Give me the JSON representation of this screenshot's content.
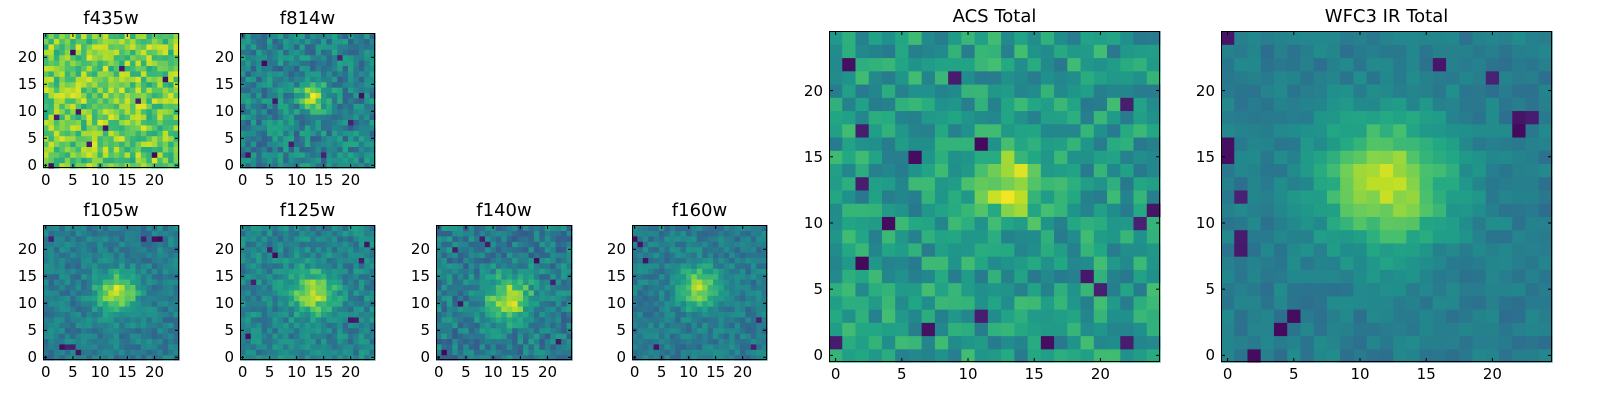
{
  "chart_data": [
    {
      "type": "heatmap",
      "title": "f435w",
      "grid_size": [
        25,
        25
      ],
      "xticks": [
        "0",
        "5",
        "10",
        "15",
        "20"
      ],
      "yticks": [
        "0",
        "5",
        "10",
        "15",
        "20"
      ],
      "source": {
        "cx": 12,
        "cy": 12,
        "sigma": 2.0,
        "amp": 0.05
      },
      "background": 0.78,
      "noise": 0.18,
      "dark_pixels": [
        [
          2,
          9
        ],
        [
          6,
          10
        ],
        [
          8,
          4
        ],
        [
          11,
          7
        ],
        [
          14,
          18
        ],
        [
          20,
          2
        ],
        [
          22,
          16
        ],
        [
          5,
          21
        ],
        [
          1,
          0
        ],
        [
          17,
          12
        ]
      ],
      "colormap": "viridis"
    },
    {
      "type": "heatmap",
      "title": "f814w",
      "grid_size": [
        25,
        25
      ],
      "xticks": [
        "0",
        "5",
        "10",
        "15",
        "20"
      ],
      "yticks": [
        "0",
        "5",
        "10",
        "15",
        "20"
      ],
      "source": {
        "cx": 13,
        "cy": 13,
        "sigma": 1.8,
        "amp": 0.45
      },
      "background": 0.45,
      "noise": 0.16,
      "dark_pixels": [
        [
          4,
          19
        ],
        [
          9,
          4
        ],
        [
          18,
          20
        ],
        [
          20,
          8
        ],
        [
          1,
          2
        ],
        [
          22,
          13
        ],
        [
          6,
          12
        ],
        [
          15,
          2
        ]
      ],
      "colormap": "viridis"
    },
    {
      "type": "heatmap",
      "title": "f105w",
      "grid_size": [
        25,
        25
      ],
      "xticks": [
        "0",
        "5",
        "10",
        "15",
        "20"
      ],
      "yticks": [
        "0",
        "5",
        "10",
        "15",
        "20"
      ],
      "source": {
        "cx": 13,
        "cy": 12,
        "sigma": 2.6,
        "amp": 0.5
      },
      "background": 0.42,
      "noise": 0.1,
      "dark_pixels": [
        [
          3,
          2
        ],
        [
          4,
          2
        ],
        [
          5,
          2
        ],
        [
          6,
          1
        ],
        [
          20,
          22
        ],
        [
          21,
          22
        ],
        [
          1,
          22
        ],
        [
          18,
          22
        ]
      ],
      "colormap": "viridis"
    },
    {
      "type": "heatmap",
      "title": "f125w",
      "grid_size": [
        25,
        25
      ],
      "xticks": [
        "0",
        "5",
        "10",
        "15",
        "20"
      ],
      "yticks": [
        "0",
        "5",
        "10",
        "15",
        "20"
      ],
      "source": {
        "cx": 13,
        "cy": 12,
        "sigma": 2.8,
        "amp": 0.42
      },
      "background": 0.45,
      "noise": 0.12,
      "dark_pixels": [
        [
          5,
          20
        ],
        [
          6,
          19
        ],
        [
          20,
          7
        ],
        [
          21,
          7
        ],
        [
          1,
          4
        ],
        [
          22,
          18
        ],
        [
          2,
          14
        ],
        [
          23,
          21
        ]
      ],
      "colormap": "viridis"
    },
    {
      "type": "heatmap",
      "title": "f140w",
      "grid_size": [
        25,
        25
      ],
      "xticks": [
        "0",
        "5",
        "10",
        "15",
        "20"
      ],
      "yticks": [
        "0",
        "5",
        "10",
        "15",
        "20"
      ],
      "source": {
        "cx": 13,
        "cy": 11,
        "sigma": 3.0,
        "amp": 0.45
      },
      "background": 0.42,
      "noise": 0.14,
      "dark_pixels": [
        [
          8,
          22
        ],
        [
          9,
          21
        ],
        [
          4,
          10
        ],
        [
          18,
          18
        ],
        [
          1,
          1
        ],
        [
          21,
          14
        ],
        [
          3,
          20
        ],
        [
          22,
          3
        ]
      ],
      "colormap": "viridis"
    },
    {
      "type": "heatmap",
      "title": "f160w",
      "grid_size": [
        25,
        25
      ],
      "xticks": [
        "0",
        "5",
        "10",
        "15",
        "20"
      ],
      "yticks": [
        "0",
        "5",
        "10",
        "15",
        "20"
      ],
      "source": {
        "cx": 12,
        "cy": 13,
        "sigma": 2.6,
        "amp": 0.45
      },
      "background": 0.42,
      "noise": 0.1,
      "dark_pixels": [
        [
          0,
          22
        ],
        [
          1,
          21
        ],
        [
          2,
          18
        ],
        [
          22,
          2
        ],
        [
          23,
          7
        ],
        [
          4,
          2
        ]
      ],
      "colormap": "viridis"
    },
    {
      "type": "heatmap",
      "title": "ACS Total",
      "grid_size": [
        25,
        25
      ],
      "xticks": [
        "0",
        "5",
        "10",
        "15",
        "20"
      ],
      "yticks": [
        "0",
        "5",
        "10",
        "15",
        "20"
      ],
      "source": {
        "cx": 13,
        "cy": 13,
        "sigma": 2.0,
        "amp": 0.35
      },
      "background": 0.55,
      "noise": 0.15,
      "dark_pixels": [
        [
          1,
          22
        ],
        [
          2,
          7
        ],
        [
          2,
          13
        ],
        [
          2,
          17
        ],
        [
          4,
          10
        ],
        [
          6,
          15
        ],
        [
          7,
          2
        ],
        [
          9,
          21
        ],
        [
          11,
          16
        ],
        [
          11,
          3
        ],
        [
          16,
          1
        ],
        [
          19,
          6
        ],
        [
          20,
          5
        ],
        [
          22,
          19
        ],
        [
          22,
          1
        ],
        [
          23,
          10
        ],
        [
          24,
          11
        ],
        [
          0,
          1
        ]
      ],
      "colormap": "viridis"
    },
    {
      "type": "heatmap",
      "title": "WFC3 IR Total",
      "grid_size": [
        25,
        25
      ],
      "xticks": [
        "0",
        "5",
        "10",
        "15",
        "20"
      ],
      "yticks": [
        "0",
        "5",
        "10",
        "15",
        "20"
      ],
      "source": {
        "cx": 12,
        "cy": 13,
        "sigma": 3.4,
        "amp": 0.48
      },
      "background": 0.42,
      "noise": 0.06,
      "dark_pixels": [
        [
          0,
          24
        ],
        [
          0,
          16
        ],
        [
          0,
          15
        ],
        [
          1,
          12
        ],
        [
          4,
          2
        ],
        [
          5,
          3
        ],
        [
          22,
          18
        ],
        [
          22,
          17
        ],
        [
          23,
          18
        ],
        [
          20,
          21
        ],
        [
          16,
          22
        ],
        [
          1,
          8
        ],
        [
          1,
          9
        ],
        [
          2,
          0
        ]
      ],
      "colormap": "viridis"
    }
  ]
}
